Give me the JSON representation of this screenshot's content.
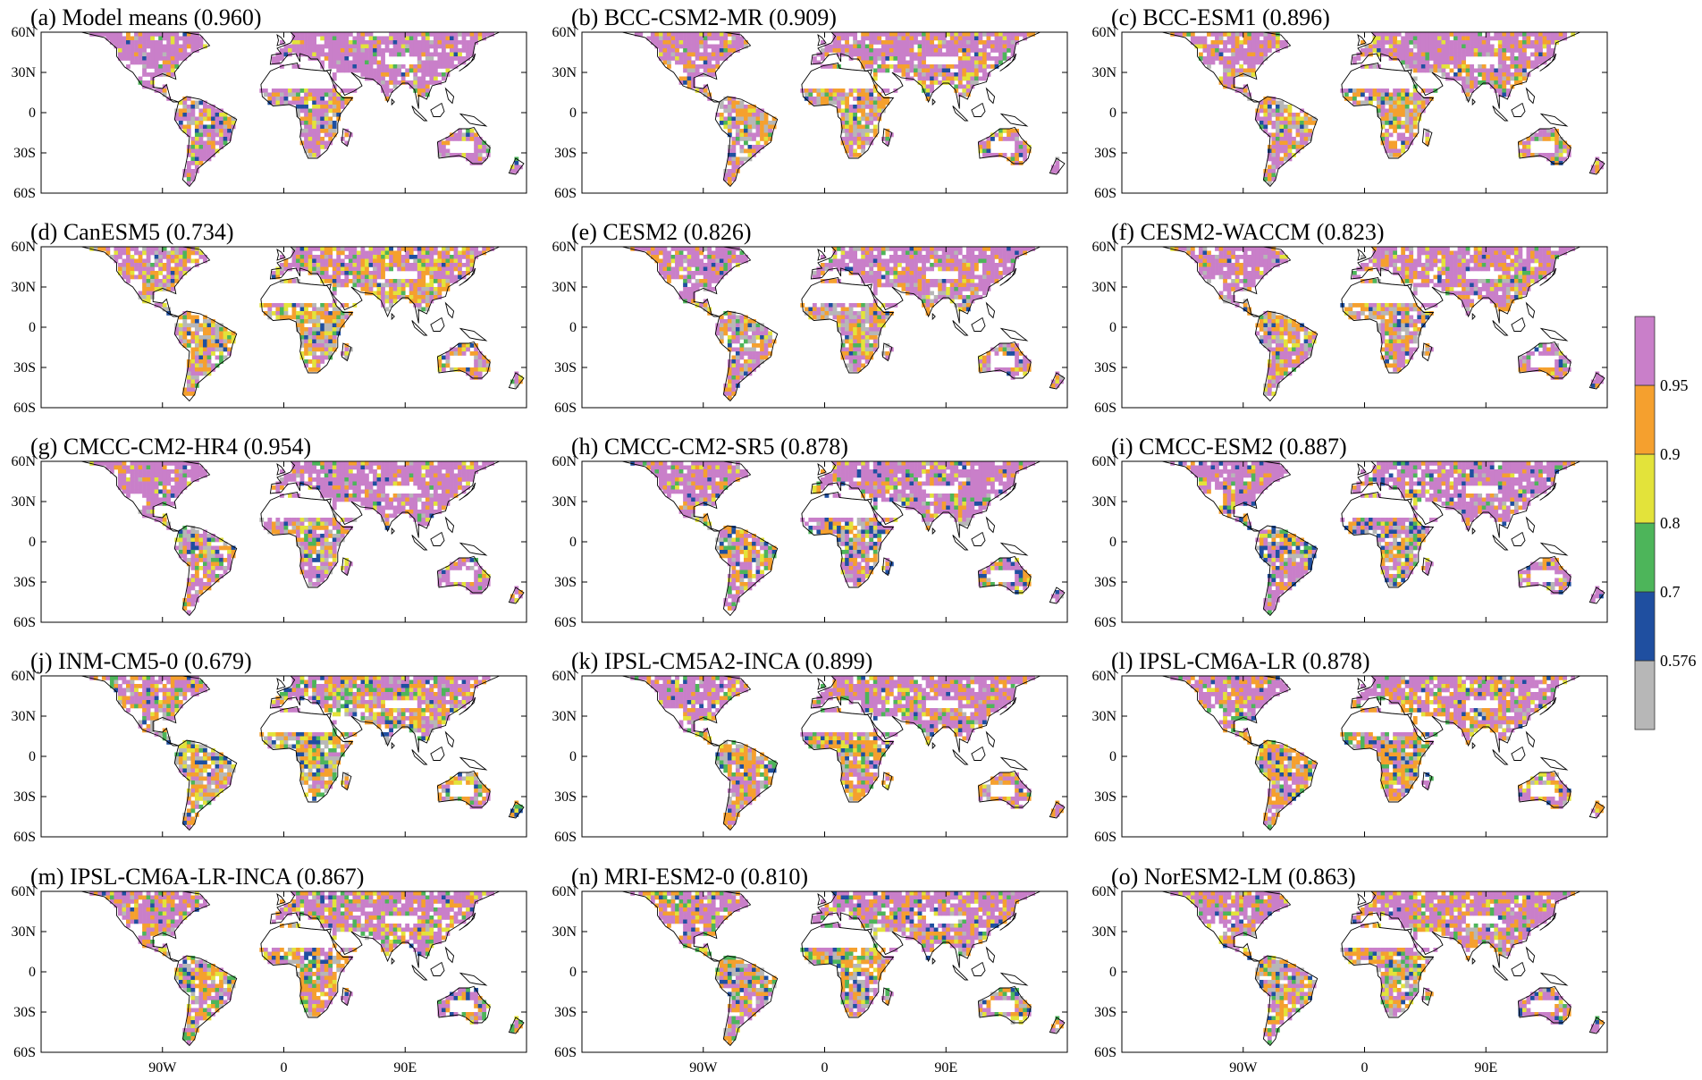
{
  "lat_labels": [
    "60N",
    "30N",
    "0",
    "30S",
    "60S"
  ],
  "lon_labels": [
    "90W",
    "0",
    "90E"
  ],
  "colorbar": {
    "bins": [
      {
        "color": "#b7b7b7"
      },
      {
        "color": "#1f4fa0"
      },
      {
        "color": "#4db55a"
      },
      {
        "color": "#e3e33a"
      },
      {
        "color": "#f5a02e"
      },
      {
        "color": "#c97fc9"
      }
    ],
    "labels": [
      "0.576",
      "0.7",
      "0.8",
      "0.9",
      "0.95"
    ]
  },
  "panels": [
    {
      "title": "(a) Model means (0.960)",
      "mix": {
        "pink": 0.7,
        "orange": 0.12,
        "yellow": 0.06,
        "green": 0.04,
        "blue": 0.03,
        "grey": 0.05
      }
    },
    {
      "title": "(b) BCC-CSM2-MR (0.909)",
      "mix": {
        "pink": 0.55,
        "orange": 0.22,
        "yellow": 0.08,
        "green": 0.05,
        "blue": 0.02,
        "grey": 0.08
      }
    },
    {
      "title": "(c) BCC-ESM1 (0.896)",
      "mix": {
        "pink": 0.55,
        "orange": 0.22,
        "yellow": 0.08,
        "green": 0.05,
        "blue": 0.02,
        "grey": 0.08
      }
    },
    {
      "title": "(d) CanESM5 (0.734)",
      "mix": {
        "pink": 0.35,
        "orange": 0.28,
        "yellow": 0.14,
        "green": 0.06,
        "blue": 0.03,
        "grey": 0.14
      }
    },
    {
      "title": "(e) CESM2 (0.826)",
      "mix": {
        "pink": 0.55,
        "orange": 0.22,
        "yellow": 0.06,
        "green": 0.04,
        "blue": 0.03,
        "grey": 0.1
      }
    },
    {
      "title": "(f) CESM2-WACCM (0.823)",
      "mix": {
        "pink": 0.55,
        "orange": 0.22,
        "yellow": 0.06,
        "green": 0.04,
        "blue": 0.03,
        "grey": 0.1
      }
    },
    {
      "title": "(g) CMCC-CM2-HR4 (0.954)",
      "mix": {
        "pink": 0.72,
        "orange": 0.12,
        "yellow": 0.05,
        "green": 0.04,
        "blue": 0.03,
        "grey": 0.04
      }
    },
    {
      "title": "(h) CMCC-CM2-SR5 (0.878)",
      "mix": {
        "pink": 0.6,
        "orange": 0.15,
        "yellow": 0.07,
        "green": 0.06,
        "blue": 0.07,
        "grey": 0.05
      }
    },
    {
      "title": "(i) CMCC-ESM2 (0.887)",
      "mix": {
        "pink": 0.6,
        "orange": 0.15,
        "yellow": 0.07,
        "green": 0.06,
        "blue": 0.07,
        "grey": 0.05
      }
    },
    {
      "title": "(j) INM-CM5-0 (0.679)",
      "mix": {
        "pink": 0.3,
        "orange": 0.25,
        "yellow": 0.12,
        "green": 0.1,
        "blue": 0.08,
        "grey": 0.15
      }
    },
    {
      "title": "(k) IPSL-CM5A2-INCA (0.899)",
      "mix": {
        "pink": 0.5,
        "orange": 0.25,
        "yellow": 0.08,
        "green": 0.07,
        "blue": 0.05,
        "grey": 0.05
      }
    },
    {
      "title": "(l) IPSL-CM6A-LR (0.878)",
      "mix": {
        "pink": 0.5,
        "orange": 0.25,
        "yellow": 0.08,
        "green": 0.07,
        "blue": 0.05,
        "grey": 0.05
      }
    },
    {
      "title": "(m) IPSL-CM6A-LR-INCA (0.867)",
      "mix": {
        "pink": 0.48,
        "orange": 0.25,
        "yellow": 0.08,
        "green": 0.08,
        "blue": 0.05,
        "grey": 0.06
      }
    },
    {
      "title": "(n) MRI-ESM2-0 (0.810)",
      "mix": {
        "pink": 0.45,
        "orange": 0.25,
        "yellow": 0.08,
        "green": 0.08,
        "blue": 0.06,
        "grey": 0.08
      }
    },
    {
      "title": "(o) NorESM2-LM (0.863)",
      "mix": {
        "pink": 0.52,
        "orange": 0.22,
        "yellow": 0.08,
        "green": 0.06,
        "blue": 0.04,
        "grey": 0.08
      }
    }
  ]
}
